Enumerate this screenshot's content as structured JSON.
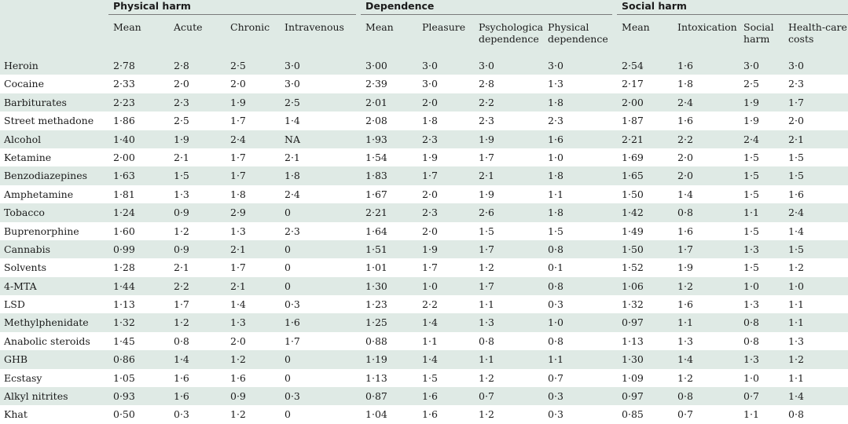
{
  "groups": [
    {
      "label": "Physical harm"
    },
    {
      "label": "Dependence"
    },
    {
      "label": "Social harm"
    }
  ],
  "subheaders": [
    "Mean",
    "Acute",
    "Chronic",
    "Intravenous",
    "Mean",
    "Pleasure",
    "Psychological dependence",
    "Physical dependence",
    "Mean",
    "Intoxication",
    "Social harm",
    "Health-care costs"
  ],
  "rows": [
    {
      "name": "Heroin",
      "values": [
        "2·78",
        "2·8",
        "2·5",
        "3·0",
        "3·00",
        "3·0",
        "3·0",
        "3·0",
        "2·54",
        "1·6",
        "3·0",
        "3·0"
      ]
    },
    {
      "name": "Cocaine",
      "values": [
        "2·33",
        "2·0",
        "2·0",
        "3·0",
        "2·39",
        "3·0",
        "2·8",
        "1·3",
        "2·17",
        "1·8",
        "2·5",
        "2·3"
      ]
    },
    {
      "name": "Barbiturates",
      "values": [
        "2·23",
        "2·3",
        "1·9",
        "2·5",
        "2·01",
        "2·0",
        "2·2",
        "1·8",
        "2·00",
        "2·4",
        "1·9",
        "1·7"
      ]
    },
    {
      "name": "Street methadone",
      "values": [
        "1·86",
        "2·5",
        "1·7",
        "1·4",
        "2·08",
        "1·8",
        "2·3",
        "2·3",
        "1·87",
        "1·6",
        "1·9",
        "2·0"
      ]
    },
    {
      "name": "Alcohol",
      "values": [
        "1·40",
        "1·9",
        "2·4",
        "NA",
        "1·93",
        "2·3",
        "1·9",
        "1·6",
        "2·21",
        "2·2",
        "2·4",
        "2·1"
      ]
    },
    {
      "name": "Ketamine",
      "values": [
        "2·00",
        "2·1",
        "1·7",
        "2·1",
        "1·54",
        "1·9",
        "1·7",
        "1·0",
        "1·69",
        "2·0",
        "1·5",
        "1·5"
      ]
    },
    {
      "name": "Benzodiazepines",
      "values": [
        "1·63",
        "1·5",
        "1·7",
        "1·8",
        "1·83",
        "1·7",
        "2·1",
        "1·8",
        "1·65",
        "2·0",
        "1·5",
        "1·5"
      ]
    },
    {
      "name": "Amphetamine",
      "values": [
        "1·81",
        "1·3",
        "1·8",
        "2·4",
        "1·67",
        "2·0",
        "1·9",
        "1·1",
        "1·50",
        "1·4",
        "1·5",
        "1·6"
      ]
    },
    {
      "name": "Tobacco",
      "values": [
        "1·24",
        "0·9",
        "2·9",
        "0",
        "2·21",
        "2·3",
        "2·6",
        "1·8",
        "1·42",
        "0·8",
        "1·1",
        "2·4"
      ]
    },
    {
      "name": "Buprenorphine",
      "values": [
        "1·60",
        "1·2",
        "1·3",
        "2·3",
        "1·64",
        "2·0",
        "1·5",
        "1·5",
        "1·49",
        "1·6",
        "1·5",
        "1·4"
      ]
    },
    {
      "name": "Cannabis",
      "values": [
        "0·99",
        "0·9",
        "2·1",
        "0",
        "1·51",
        "1·9",
        "1·7",
        "0·8",
        "1·50",
        "1·7",
        "1·3",
        "1·5"
      ]
    },
    {
      "name": "Solvents",
      "values": [
        "1·28",
        "2·1",
        "1·7",
        "0",
        "1·01",
        "1·7",
        "1·2",
        "0·1",
        "1·52",
        "1·9",
        "1·5",
        "1·2"
      ]
    },
    {
      "name": "4-MTA",
      "values": [
        "1·44",
        "2·2",
        "2·1",
        "0",
        "1·30",
        "1·0",
        "1·7",
        "0·8",
        "1·06",
        "1·2",
        "1·0",
        "1·0"
      ]
    },
    {
      "name": "LSD",
      "values": [
        "1·13",
        "1·7",
        "1·4",
        "0·3",
        "1·23",
        "2·2",
        "1·1",
        "0·3",
        "1·32",
        "1·6",
        "1·3",
        "1·1"
      ]
    },
    {
      "name": "Methylphenidate",
      "values": [
        "1·32",
        "1·2",
        "1·3",
        "1·6",
        "1·25",
        "1·4",
        "1·3",
        "1·0",
        "0·97",
        "1·1",
        "0·8",
        "1·1"
      ]
    },
    {
      "name": "Anabolic steroids",
      "values": [
        "1·45",
        "0·8",
        "2·0",
        "1·7",
        "0·88",
        "1·1",
        "0·8",
        "0·8",
        "1·13",
        "1·3",
        "0·8",
        "1·3"
      ]
    },
    {
      "name": "GHB",
      "values": [
        "0·86",
        "1·4",
        "1·2",
        "0",
        "1·19",
        "1·4",
        "1·1",
        "1·1",
        "1·30",
        "1·4",
        "1·3",
        "1·2"
      ]
    },
    {
      "name": "Ecstasy",
      "values": [
        "1·05",
        "1·6",
        "1·6",
        "0",
        "1·13",
        "1·5",
        "1·2",
        "0·7",
        "1·09",
        "1·2",
        "1·0",
        "1·1"
      ]
    },
    {
      "name": "Alkyl nitrites",
      "values": [
        "0·93",
        "1·6",
        "0·9",
        "0·3",
        "0·87",
        "1·6",
        "0·7",
        "0·3",
        "0·97",
        "0·8",
        "0·7",
        "1·4"
      ]
    },
    {
      "name": "Khat",
      "values": [
        "0·50",
        "0·3",
        "1·2",
        "0",
        "1·04",
        "1·6",
        "1·2",
        "0·3",
        "0·85",
        "0·7",
        "1·1",
        "0·8"
      ]
    }
  ],
  "colors": {
    "shade": "#dfeae5",
    "rule": "#7a7a7a"
  }
}
